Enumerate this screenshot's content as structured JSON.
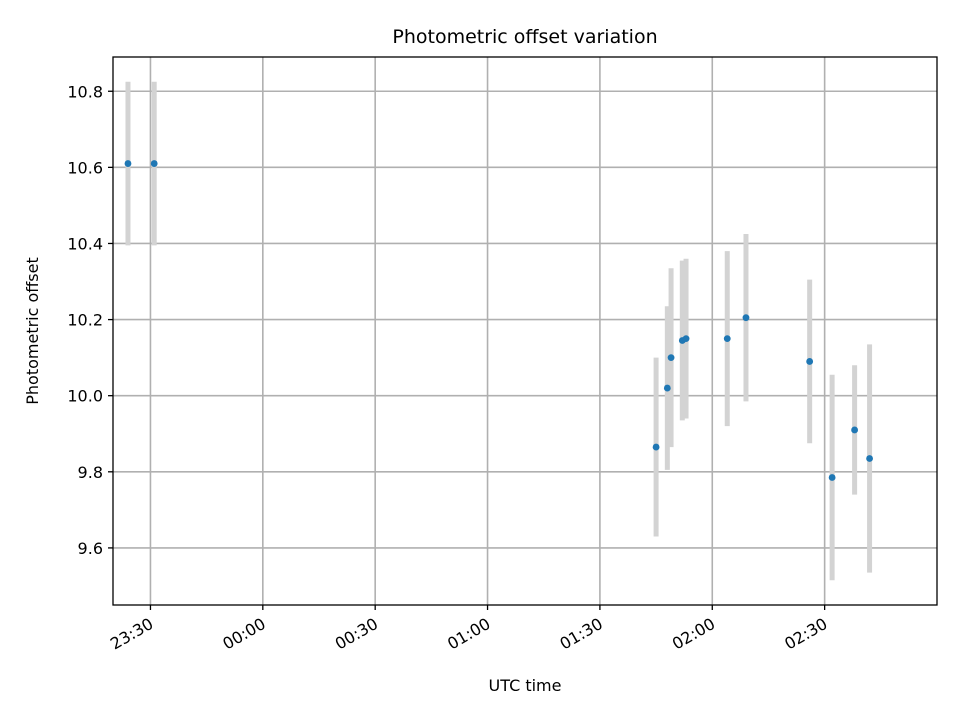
{
  "chart_data": {
    "type": "scatter",
    "title": "Photometric offset variation",
    "xlabel": "UTC time",
    "ylabel": "Photometric offset",
    "x_is_time": true,
    "xlim": [
      "23:20",
      "03:00"
    ],
    "ylim": [
      9.45,
      10.89
    ],
    "x_ticks": [
      "23:30",
      "00:00",
      "00:30",
      "01:00",
      "01:30",
      "02:00",
      "02:30"
    ],
    "y_ticks": [
      9.6,
      9.8,
      10.0,
      10.2,
      10.4,
      10.6,
      10.8
    ],
    "grid": true,
    "series": [
      {
        "points": [
          {
            "x": "23:24",
            "y": 10.61,
            "err": 0.215
          },
          {
            "x": "23:31",
            "y": 10.61,
            "err": 0.215
          },
          {
            "x": "01:45",
            "y": 9.865,
            "err": 0.235
          },
          {
            "x": "01:48",
            "y": 10.02,
            "err": 0.215
          },
          {
            "x": "01:49",
            "y": 10.1,
            "err": 0.235
          },
          {
            "x": "01:52",
            "y": 10.145,
            "err": 0.21
          },
          {
            "x": "01:53",
            "y": 10.15,
            "err": 0.21
          },
          {
            "x": "02:04",
            "y": 10.15,
            "err": 0.23
          },
          {
            "x": "02:09",
            "y": 10.205,
            "err": 0.22
          },
          {
            "x": "02:26",
            "y": 10.09,
            "err": 0.215
          },
          {
            "x": "02:32",
            "y": 9.785,
            "err": 0.27
          },
          {
            "x": "02:38",
            "y": 9.91,
            "err": 0.17
          },
          {
            "x": "02:42",
            "y": 9.835,
            "err": 0.3
          }
        ]
      }
    ],
    "colors": {
      "point": "#1f77b4",
      "errorbar": "#d3d3d3",
      "grid": "#b0b0b0"
    }
  }
}
